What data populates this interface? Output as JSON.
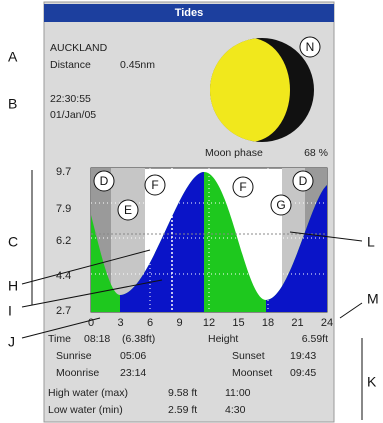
{
  "screen": {
    "title": "Tides",
    "location": "AUCKLAND",
    "distance_label": "Distance",
    "distance": "0.45nm",
    "time": "22:30:55",
    "date": "01/Jan/05",
    "moon_marker": "N",
    "moon_phase_label": "Moon phase",
    "moon_phase": "68 %",
    "chart": {
      "y_labels": [
        "9.7",
        "7.9",
        "6.2",
        "4.4",
        "2.7"
      ],
      "x_labels": [
        "0",
        "3",
        "6",
        "9",
        "12",
        "15",
        "18",
        "21",
        "24"
      ],
      "markers": [
        "D",
        "F",
        "E",
        "F",
        "G",
        "D"
      ]
    },
    "rows": [
      [
        "Time",
        "08:18",
        "(6.38ft)",
        "Height",
        "6.59ft"
      ],
      [
        "Sunrise",
        "05:06",
        "Sunset",
        "19:43"
      ],
      [
        "Moonrise",
        "23:14",
        "Moonset",
        "09:45"
      ],
      [
        "High water (max)",
        "9.58 ft",
        "11:00"
      ],
      [
        "Low water (min)",
        "2.59 ft",
        "4:30"
      ]
    ]
  },
  "callouts": [
    "A",
    "B",
    "C",
    "H",
    "I",
    "J",
    "L",
    "M",
    "K"
  ]
}
